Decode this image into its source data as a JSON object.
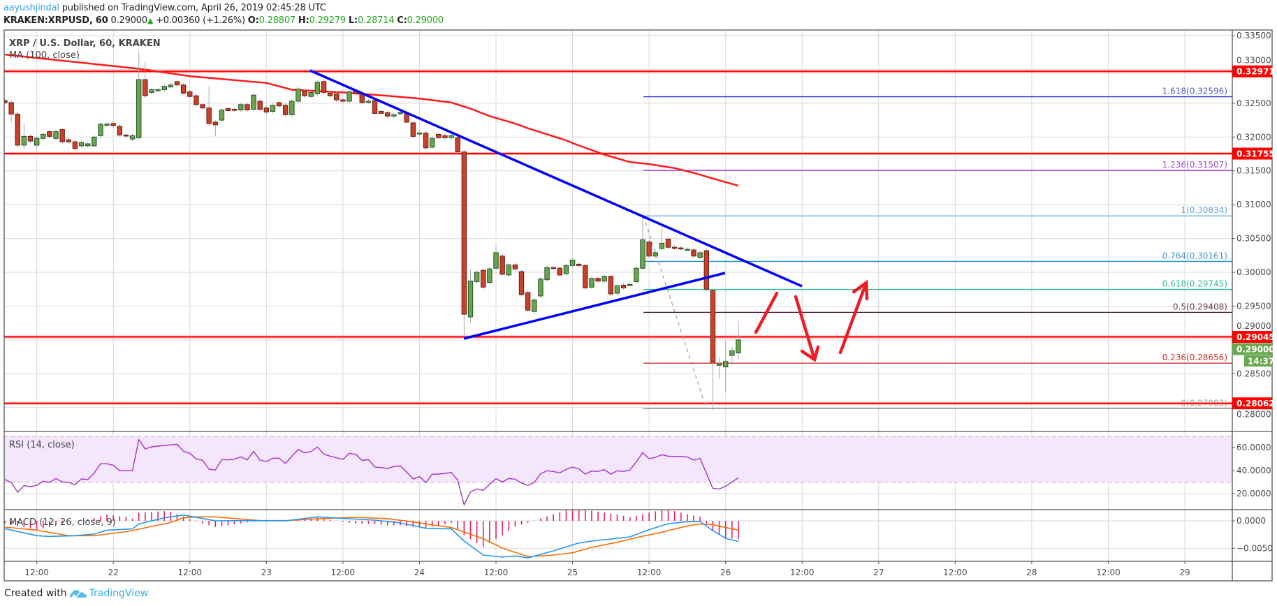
{
  "header": {
    "author": "aayushjindal",
    "published": "published on TradingView.com, April 26, 2019 02:45:28 UTC",
    "symbol": "KRAKEN:XRPUSD, 60",
    "last": "0.29000",
    "change_icon": "triangle-up-icon",
    "change": "+0.00360 (+1.26%)",
    "o_label": "O:",
    "o": "0.28807",
    "h_label": "H:",
    "h": "0.29279",
    "l_label": "L:",
    "l": "0.28714",
    "c_label": "C:",
    "c": "0.29000"
  },
  "legend": {
    "title": "XRP / U.S. Dollar, 60, KRAKEN",
    "ma": "MA (100, close)",
    "rsi": "RSI (14, close)",
    "macd": "MACD (12, 26, close, 9)"
  },
  "footer": {
    "created": "Created with",
    "brand": "TradingView",
    "logo_icon": "tradingview-cloud-icon"
  },
  "colors": {
    "up": "#6ba54a",
    "down": "#c8412b",
    "ma": "#ff1a1a",
    "level": "#ff0000",
    "trendline": "#0000ff",
    "rsi": "#a535c4",
    "macd": "#2196f3",
    "signal": "#ff6d00",
    "histogram": "#e91e63",
    "last_price": "#6aa84f"
  },
  "chart_data": {
    "type": "candlestick",
    "interval": "60",
    "x_ticks": [
      "12:00",
      "22",
      "12:00",
      "23",
      "12:00",
      "24",
      "12:00",
      "25",
      "12:00",
      "26",
      "12:00",
      "27",
      "12:00",
      "28",
      "12:00",
      "29"
    ],
    "price_ticks": [
      "0.33500",
      "0.33000",
      "0.32500",
      "0.32000",
      "0.31500",
      "0.31000",
      "0.30500",
      "0.30000",
      "0.29500",
      "0.29000",
      "0.28500",
      "0.28000"
    ],
    "ylim": [
      0.2775,
      0.3358
    ],
    "candles": [
      [
        "04-21 07:00",
        0.3254,
        0.3251
      ],
      [
        "04-21 08:00",
        0.3251,
        0.3234,
        null,
        0.3222
      ],
      [
        "04-21 09:00",
        0.3234,
        0.3188
      ],
      [
        "04-21 10:00",
        0.3188,
        0.3201,
        0.3219,
        0.3183
      ],
      [
        "04-21 11:00",
        0.3201,
        0.3194
      ],
      [
        "04-21 12:00",
        0.3188,
        0.3198,
        null,
        0.3185
      ],
      [
        "04-21 13:00",
        0.3198,
        0.3204
      ],
      [
        "04-21 14:00",
        0.3208,
        0.3201
      ],
      [
        "04-21 15:00",
        0.3198,
        0.3208
      ],
      [
        "04-21 16:00",
        0.3211,
        0.3193
      ],
      [
        "04-21 17:00",
        0.3196,
        0.3193
      ],
      [
        "04-21 18:00",
        0.3193,
        0.3183
      ],
      [
        "04-21 19:00",
        0.3187,
        0.3192
      ],
      [
        "04-21 20:00",
        0.3187,
        0.319
      ],
      [
        "04-21 21:00",
        0.3187,
        0.32
      ],
      [
        "04-21 22:00",
        0.3202,
        0.3219
      ],
      [
        "04-21 23:00",
        0.3218,
        0.3219
      ],
      [
        "04-22 00:00",
        0.322,
        0.3217
      ],
      [
        "04-22 01:00",
        0.3216,
        0.3203
      ],
      [
        "04-22 02:00",
        0.3203,
        0.3202
      ],
      [
        "04-22 03:00",
        0.3197,
        0.3202
      ],
      [
        "04-22 04:00",
        0.3199,
        0.3285,
        0.3327
      ],
      [
        "04-22 05:00",
        0.3285,
        0.3261,
        0.331
      ],
      [
        "04-22 06:00",
        0.3266,
        0.327
      ],
      [
        "04-22 07:00",
        0.3269,
        0.327
      ],
      [
        "04-22 08:00",
        0.327,
        0.3275
      ],
      [
        "04-22 09:00",
        0.3274,
        0.3277
      ],
      [
        "04-22 10:00",
        0.3282,
        0.3277
      ],
      [
        "04-22 11:00",
        0.3277,
        0.3265
      ],
      [
        "04-22 12:00",
        0.3267,
        0.326
      ],
      [
        "04-22 13:00",
        0.3261,
        0.3248
      ],
      [
        "04-22 14:00",
        0.3248,
        0.3243
      ],
      [
        "04-22 15:00",
        0.3243,
        0.322,
        0.3274
      ],
      [
        "04-22 16:00",
        0.3222,
        0.3218,
        null,
        0.3201
      ],
      [
        "04-22 17:00",
        0.3225,
        0.324
      ],
      [
        "04-22 18:00",
        0.3242,
        0.3239
      ],
      [
        "04-22 19:00",
        0.3241,
        0.324
      ],
      [
        "04-22 20:00",
        0.324,
        0.3248
      ],
      [
        "04-22 21:00",
        0.3248,
        0.324
      ],
      [
        "04-22 22:00",
        0.3241,
        0.3262
      ],
      [
        "04-22 23:00",
        0.3253,
        0.3241
      ],
      [
        "04-23 00:00",
        0.3243,
        0.3237
      ],
      [
        "04-23 01:00",
        0.3238,
        0.3247
      ],
      [
        "04-23 02:00",
        0.3251,
        0.3246
      ],
      [
        "04-23 03:00",
        0.3247,
        0.3233
      ],
      [
        "04-23 04:00",
        0.3233,
        0.3253
      ],
      [
        "04-23 05:00",
        0.3253,
        0.3271
      ],
      [
        "04-23 06:00",
        0.3268,
        0.3261
      ],
      [
        "04-23 07:00",
        0.326,
        0.3266
      ],
      [
        "04-23 08:00",
        0.3264,
        0.3281
      ],
      [
        "04-23 09:00",
        0.3282,
        0.3266
      ],
      [
        "04-23 10:00",
        0.3265,
        0.3261
      ],
      [
        "04-23 11:00",
        0.3264,
        0.3255
      ],
      [
        "04-23 12:00",
        0.3255,
        0.3253
      ],
      [
        "04-23 13:00",
        0.3253,
        0.3267
      ],
      [
        "04-23 14:00",
        0.3268,
        0.3264
      ],
      [
        "04-23 15:00",
        0.3264,
        0.3251
      ],
      [
        "04-23 16:00",
        0.3252,
        0.3253
      ],
      [
        "04-23 17:00",
        0.3254,
        0.3235
      ],
      [
        "04-23 18:00",
        0.3238,
        0.3235
      ],
      [
        "04-23 19:00",
        0.3236,
        0.3231
      ],
      [
        "04-23 20:00",
        0.3231,
        0.3233
      ],
      [
        "04-23 21:00",
        0.3235,
        0.3236
      ],
      [
        "04-23 22:00",
        0.3235,
        0.3222
      ],
      [
        "04-23 23:00",
        0.3221,
        0.3201
      ],
      [
        "04-24 00:00",
        0.3205,
        0.3206
      ],
      [
        "04-24 01:00",
        0.3206,
        0.3184
      ],
      [
        "04-24 02:00",
        0.3185,
        0.3198
      ],
      [
        "04-24 03:00",
        0.3204,
        0.3199
      ],
      [
        "04-24 04:00",
        0.3202,
        0.3199
      ],
      [
        "04-24 05:00",
        0.3199,
        0.3202
      ],
      [
        "04-24 06:00",
        0.3199,
        0.3178
      ],
      [
        "04-24 07:00",
        0.3178,
        0.2938,
        null,
        0.2902
      ],
      [
        "04-24 08:00",
        0.2934,
        0.2987,
        0.3004,
        0.2925
      ],
      [
        "04-24 09:00",
        0.2986,
        0.3
      ],
      [
        "04-24 10:00",
        0.3003,
        0.2978
      ],
      [
        "04-24 11:00",
        0.2985,
        0.3005
      ],
      [
        "04-24 12:00",
        0.3006,
        0.3029,
        0.304
      ],
      [
        "04-24 13:00",
        0.3024,
        0.2997
      ],
      [
        "04-24 14:00",
        0.2996,
        0.3011
      ],
      [
        "04-24 15:00",
        0.3011,
        0.3005
      ],
      [
        "04-24 16:00",
        0.3001,
        0.2967
      ],
      [
        "04-24 17:00",
        0.297,
        0.2944
      ],
      [
        "04-24 18:00",
        0.2942,
        0.2959
      ],
      [
        "04-24 19:00",
        0.2965,
        0.299
      ],
      [
        "04-24 20:00",
        0.2989,
        0.3007
      ],
      [
        "04-24 21:00",
        0.3007,
        0.3006
      ],
      [
        "04-24 22:00",
        0.3006,
        0.2996
      ],
      [
        "04-24 23:00",
        0.2998,
        0.301
      ],
      [
        "04-25 00:00",
        0.301,
        0.3018
      ],
      [
        "04-25 01:00",
        0.3012,
        0.301
      ],
      [
        "04-25 02:00",
        0.301,
        0.2977
      ],
      [
        "04-25 03:00",
        0.2978,
        0.2991
      ],
      [
        "04-25 04:00",
        0.2991,
        0.2987
      ],
      [
        "04-25 05:00",
        0.2987,
        0.2994
      ],
      [
        "04-25 06:00",
        0.2994,
        0.2968
      ],
      [
        "04-25 07:00",
        0.2969,
        0.298
      ],
      [
        "04-25 08:00",
        0.2981,
        0.2977
      ],
      [
        "04-25 09:00",
        0.2982,
        0.2982
      ],
      [
        "04-25 10:00",
        0.2986,
        0.3006
      ],
      [
        "04-25 11:00",
        0.3006,
        0.3048,
        0.3083
      ],
      [
        "04-25 12:00",
        0.3045,
        0.3024
      ],
      [
        "04-25 13:00",
        0.3024,
        0.3029
      ],
      [
        "04-25 14:00",
        0.3035,
        0.3043,
        0.3069
      ],
      [
        "04-25 15:00",
        0.3049,
        0.3037
      ],
      [
        "04-25 16:00",
        0.3037,
        0.3036
      ],
      [
        "04-25 17:00",
        0.3036,
        0.3035
      ],
      [
        "04-25 18:00",
        0.3034,
        0.3034
      ],
      [
        "04-25 19:00",
        0.3033,
        0.3024
      ],
      [
        "04-25 20:00",
        0.3022,
        0.3029
      ],
      [
        "04-25 21:00",
        0.3032,
        0.2975
      ],
      [
        "04-25 22:00",
        0.2973,
        0.2867,
        null,
        0.2796
      ],
      [
        "04-25 23:00",
        0.2864,
        0.2864,
        0.2875,
        0.2842
      ],
      [
        "04-26 00:00",
        0.286,
        0.2868,
        0.2897,
        0.2822
      ],
      [
        "04-26 01:00",
        0.2877,
        0.2884,
        0.289,
        0.2863
      ],
      [
        "04-26 02:00",
        0.28807,
        0.29,
        0.29279,
        0.28714
      ]
    ],
    "ma100": [
      [
        "04-21 07:00",
        0.3322
      ],
      [
        "04-22 04:00",
        0.3301
      ],
      [
        "04-22 12:00",
        0.329
      ],
      [
        "04-23 00:00",
        0.328
      ],
      [
        "04-23 04:00",
        0.327
      ],
      [
        "04-23 12:00",
        0.3266
      ],
      [
        "04-23 19:00",
        0.3261
      ],
      [
        "04-24 00:00",
        0.3257
      ],
      [
        "04-24 05:00",
        0.3251
      ],
      [
        "04-24 08:00",
        0.3242
      ],
      [
        "04-24 11:00",
        0.3231
      ],
      [
        "04-24 15:00",
        0.322
      ],
      [
        "04-24 17:00",
        0.3213
      ],
      [
        "04-24 23:00",
        0.3195
      ],
      [
        "04-25 00:00",
        0.3191
      ],
      [
        "04-25 05:00",
        0.3174
      ],
      [
        "04-25 09:00",
        0.3163
      ],
      [
        "04-25 12:00",
        0.316
      ],
      [
        "04-25 16:00",
        0.3154
      ],
      [
        "04-25 19:00",
        0.3147
      ],
      [
        "04-25 23:00",
        0.3136
      ],
      [
        "04-26 02:00",
        0.3128
      ]
    ],
    "levels": [
      {
        "price": 0.32971,
        "label": "0.32971"
      },
      {
        "price": 0.31755,
        "label": "0.31755"
      },
      {
        "price": 0.29045,
        "label": "0.29045"
      },
      {
        "price": 0.28062,
        "label": "0.28062"
      }
    ],
    "fib": [
      {
        "price": 0.32596,
        "label": "1.618(0.32596)",
        "color": "#2b2bd6",
        "text": "#5a5ad0"
      },
      {
        "price": 0.31507,
        "label": "1.236(0.31507)",
        "color": "#9c2fd6",
        "text": "#a14bd6"
      },
      {
        "price": 0.30834,
        "label": "1(0.30834)",
        "color": "#5da5d6",
        "text": "#5da5d6"
      },
      {
        "price": 0.30161,
        "label": "0.764(0.30161)",
        "color": "#1f8fd0",
        "text": "#3f98d0"
      },
      {
        "price": 0.29745,
        "label": "0.618(0.29745)",
        "color": "#2fbf8a",
        "text": "#2fbf8a"
      },
      {
        "price": 0.29408,
        "label": "0.5(0.29408)",
        "color": "#4a0f2a",
        "text": "#6a3a50"
      },
      {
        "price": 0.28656,
        "label": "0.236(0.28656)",
        "color": "#c83232",
        "text": "#c83232"
      },
      {
        "price": 0.27983,
        "label": "0(0.27983)",
        "color": "#888888",
        "text": "#a0a0a0"
      }
    ],
    "last_price": {
      "price": 0.29,
      "label": "0.29000",
      "countdown": "14:37"
    },
    "rsi": {
      "ticks": [
        "60.0000",
        "40.0000",
        "20.0000"
      ],
      "band": [
        30,
        70
      ],
      "values": [
        32.3,
        29.7,
        21.2,
        27,
        26,
        27.3,
        30.7,
        29.7,
        33.1,
        30.1,
        29.7,
        27.7,
        32.7,
        32.1,
        37.8,
        45.9,
        45.9,
        44.6,
        39.8,
        39.8,
        39.8,
        66.9,
        58.8,
        60.6,
        61.2,
        61.8,
        62.3,
        62.8,
        56.8,
        54.9,
        50.1,
        48.9,
        41.2,
        40.4,
        49.5,
        49.3,
        49.9,
        51.9,
        49.3,
        56.6,
        49.1,
        47.9,
        50.7,
        50.7,
        46.1,
        52.5,
        58.4,
        55.4,
        56.4,
        60.4,
        54.3,
        52.5,
        51.1,
        49.7,
        54.9,
        54.1,
        48.7,
        49.5,
        43.0,
        42.6,
        41.8,
        43.5,
        44.0,
        38.8,
        32.7,
        34.7,
        29.7,
        36.8,
        37.0,
        37.6,
        38.4,
        31.7,
        10.3,
        21.6,
        24.0,
        22.8,
        28.1,
        32.9,
        30.1,
        33.1,
        32.5,
        29.3,
        27.1,
        29.7,
        37.2,
        39.8,
        39.2,
        38.0,
        41.0,
        43.0,
        41.4,
        37.0,
        39.6,
        39.2,
        40.8,
        37.0,
        39.8,
        39.2,
        40.4,
        47.5,
        55.6,
        50.3,
        51.5,
        53.7,
        52.5,
        52.3,
        52.1,
        51.9,
        49.1,
        50.5,
        37.4,
        24.6,
        24.0,
        26.3,
        30.1,
        33.7
      ]
    },
    "macd": {
      "ticks": [
        "0.0000",
        "−0.0050"
      ],
      "macd_line": [
        [
          "04-21 07:00",
          -0.00144
        ],
        [
          "04-21 12:00",
          -0.00271
        ],
        [
          "04-21 14:00",
          -0.00284
        ],
        [
          "04-21 18:00",
          -0.00271
        ],
        [
          "04-21 21:00",
          -0.00242
        ],
        [
          "04-21 23:00",
          -0.0017
        ],
        [
          "04-22 03:00",
          -0.00148
        ],
        [
          "04-22 04:00",
          -0.00059
        ],
        [
          "04-22 06:00",
          0
        ],
        [
          "04-22 08:00",
          0.00055
        ],
        [
          "04-22 11:00",
          0.00106
        ],
        [
          "04-22 12:00",
          0.00085
        ],
        [
          "04-22 15:00",
          0.00021
        ],
        [
          "04-22 16:00",
          0
        ],
        [
          "04-22 21:00",
          4e-05
        ],
        [
          "04-23 03:00",
          0
        ],
        [
          "04-23 08:00",
          0.00072
        ],
        [
          "04-23 11:00",
          0.00051
        ],
        [
          "04-23 17:00",
          0.00013
        ],
        [
          "04-23 21:00",
          -0.00038
        ],
        [
          "04-24 01:00",
          -0.00136
        ],
        [
          "04-24 05:00",
          -0.00148
        ],
        [
          "04-24 07:00",
          -0.00369
        ],
        [
          "04-24 10:00",
          -0.00623
        ],
        [
          "04-24 13:00",
          -0.00661
        ],
        [
          "04-24 15:00",
          -0.0064
        ],
        [
          "04-24 17:00",
          -0.00674
        ],
        [
          "04-24 21:00",
          -0.00547
        ],
        [
          "04-25 01:00",
          -0.00403
        ],
        [
          "04-25 03:00",
          -0.00369
        ],
        [
          "04-25 09:00",
          -0.00293
        ],
        [
          "04-25 12:00",
          -0.00161
        ],
        [
          "04-25 15:00",
          -0.00051
        ],
        [
          "04-25 18:00",
          -0.00017
        ],
        [
          "04-25 20:00",
          -0.00013
        ],
        [
          "04-25 22:00",
          -0.00178
        ],
        [
          "04-26 00:00",
          -0.00318
        ],
        [
          "04-26 02:00",
          -0.00377
        ]
      ],
      "signal_line": [
        [
          "04-21 07:00",
          -0.00114
        ],
        [
          "04-21 12:00",
          -0.0017
        ],
        [
          "04-21 17:00",
          -0.00271
        ],
        [
          "04-21 21:00",
          -0.00271
        ],
        [
          "04-21 23:00",
          -0.00242
        ],
        [
          "04-22 02:00",
          -0.00199
        ],
        [
          "04-22 05:00",
          -0.00127
        ],
        [
          "04-22 09:00",
          -0.0003
        ],
        [
          "04-22 11:00",
          0.00055
        ],
        [
          "04-22 13:00",
          0.00072
        ],
        [
          "04-22 16:00",
          0.00072
        ],
        [
          "04-22 19:00",
          0.00042
        ],
        [
          "04-22 23:00",
          4e-05
        ],
        [
          "04-23 03:00",
          4e-05
        ],
        [
          "04-23 07:00",
          0.0003
        ],
        [
          "04-23 11:00",
          0.00051
        ],
        [
          "04-23 14:00",
          0.00064
        ],
        [
          "04-23 19:00",
          0.0004
        ],
        [
          "04-23 22:00",
          -4e-05
        ],
        [
          "04-24 05:00",
          -0.00123
        ],
        [
          "04-24 10:00",
          -0.00326
        ],
        [
          "04-24 13:00",
          -0.00496
        ],
        [
          "04-24 17:00",
          -0.00653
        ],
        [
          "04-24 21:00",
          -0.00623
        ],
        [
          "04-25 00:00",
          -0.00581
        ],
        [
          "04-25 03:00",
          -0.00483
        ],
        [
          "04-25 07:00",
          -0.0039
        ],
        [
          "04-25 10:00",
          -0.00305
        ],
        [
          "04-25 14:00",
          -0.00208
        ],
        [
          "04-25 18:00",
          -0.00093
        ],
        [
          "04-25 20:00",
          -0.00059
        ],
        [
          "04-25 22:00",
          -0.00072
        ],
        [
          "04-26 02:00",
          -0.0017
        ]
      ]
    }
  }
}
